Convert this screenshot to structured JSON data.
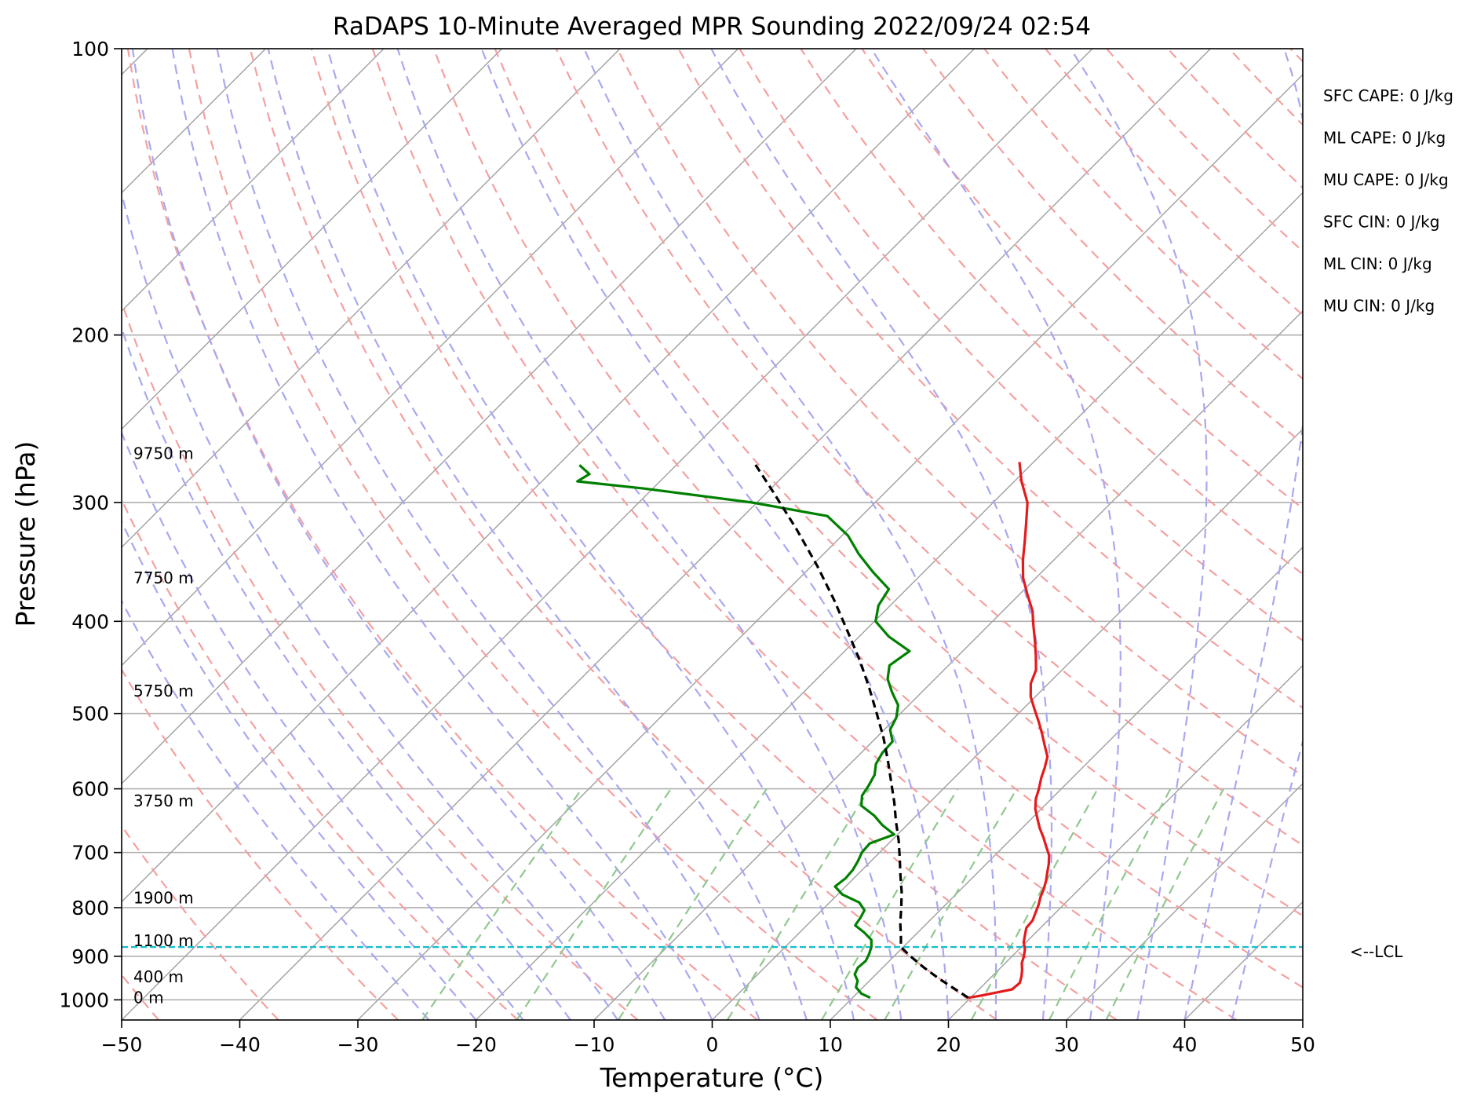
{
  "chart_data": {
    "type": "line",
    "title": "RaDAPS 10-Minute Averaged MPR Sounding 2022/09/24 02:54",
    "xlabel": "Temperature (°C)",
    "ylabel": "Pressure (hPa)",
    "xlim": [
      -50,
      50
    ],
    "ylim": [
      1050,
      100
    ],
    "y_scale": "log",
    "grid": true,
    "x_ticks": [
      -50,
      -40,
      -30,
      -20,
      -10,
      0,
      10,
      20,
      30,
      40,
      50
    ],
    "x_tick_labels": [
      "−50",
      "−40",
      "−30",
      "−20",
      "−10",
      "0",
      "10",
      "20",
      "30",
      "40",
      "50"
    ],
    "y_ticks": [
      100,
      200,
      300,
      400,
      500,
      600,
      700,
      800,
      900,
      1000
    ],
    "y_tick_labels": [
      "100",
      "200",
      "300",
      "400",
      "500",
      "600",
      "700",
      "800",
      "900",
      "1000"
    ],
    "colors": {
      "temperature": "#e41a1c",
      "dewpoint": "#008000",
      "parcel": "#000000",
      "lcl": "#17becf",
      "isotherm": "#a0a0a0",
      "dry_adiabat": "#f4a0a0",
      "moist_adiabat": "#a8a8f0",
      "mixing_ratio": "#90c890"
    },
    "series": [
      {
        "role": "temperature",
        "p": [
          995,
          990,
          975,
          960,
          945,
          930,
          915,
          900,
          885,
          870,
          855,
          840,
          825,
          810,
          795,
          780,
          765,
          750,
          735,
          720,
          705,
          690,
          675,
          660,
          645,
          630,
          615,
          600,
          585,
          570,
          555,
          540,
          525,
          510,
          495,
          480,
          465,
          450,
          435,
          420,
          405,
          390,
          375,
          360,
          345,
          330,
          315,
          300,
          285,
          272
        ],
        "t": [
          19.8,
          20.7,
          22.8,
          22.9,
          22.5,
          22.0,
          21.4,
          21.0,
          20.5,
          19.8,
          19.3,
          18.8,
          18.7,
          18.3,
          17.9,
          17.4,
          17.0,
          16.5,
          15.9,
          15.3,
          14.6,
          13.6,
          12.6,
          11.5,
          10.5,
          9.5,
          8.7,
          8.1,
          7.4,
          6.8,
          6.1,
          4.9,
          3.7,
          2.4,
          1.0,
          -0.4,
          -1.5,
          -2.2,
          -3.4,
          -4.7,
          -6.1,
          -7.5,
          -9.3,
          -11.1,
          -12.6,
          -14.0,
          -15.5,
          -17.1,
          -19.4,
          -21.2
        ]
      },
      {
        "role": "dewpoint",
        "p": [
          995,
          985,
          970,
          955,
          940,
          925,
          910,
          895,
          880,
          865,
          850,
          835,
          820,
          805,
          790,
          775,
          760,
          745,
          730,
          715,
          700,
          685,
          670,
          655,
          640,
          625,
          610,
          595,
          580,
          565,
          550,
          535,
          520,
          505,
          490,
          475,
          460,
          445,
          430,
          415,
          400,
          385,
          370,
          355,
          340,
          325,
          310,
          300,
          290,
          285,
          280,
          274
        ],
        "td": [
          11.5,
          10.4,
          9.4,
          9.0,
          8.2,
          7.9,
          8.0,
          7.7,
          7.3,
          6.7,
          5.5,
          4.1,
          3.9,
          3.6,
          2.5,
          0.4,
          -0.9,
          -0.7,
          -0.8,
          -1.1,
          -1.5,
          -1.6,
          -0.3,
          -2.1,
          -3.6,
          -5.5,
          -6.3,
          -6.6,
          -7.0,
          -7.8,
          -8.2,
          -8.3,
          -9.5,
          -10.0,
          -10.9,
          -12.5,
          -14.0,
          -15.0,
          -14.5,
          -17.5,
          -19.9,
          -21.0,
          -21.5,
          -24.3,
          -27.0,
          -29.5,
          -32.9,
          -40.4,
          -50.8,
          -57.0,
          -56.6,
          -58.2
        ]
      },
      {
        "role": "parcel",
        "p": [
          995,
          975,
          950,
          925,
          900,
          880,
          860,
          830,
          800,
          770,
          740,
          710,
          680,
          650,
          620,
          590,
          560,
          530,
          500,
          470,
          440,
          410,
          380,
          350,
          320,
          290,
          272
        ],
        "t": [
          19.8,
          18.0,
          15.7,
          13.5,
          11.4,
          9.8,
          9.0,
          7.7,
          6.5,
          5.2,
          3.7,
          2.2,
          0.6,
          -1.2,
          -3.0,
          -5.0,
          -7.1,
          -9.4,
          -12.0,
          -14.8,
          -17.9,
          -21.4,
          -25.2,
          -29.5,
          -34.4,
          -40.0,
          -43.7
        ]
      }
    ],
    "lcl_pressure": 880,
    "lcl_label": "<--LCL",
    "height_labels": [
      {
        "text": "9750 m",
        "p": 270
      },
      {
        "text": "7750 m",
        "p": 365
      },
      {
        "text": "5750 m",
        "p": 480
      },
      {
        "text": "3750 m",
        "p": 626
      },
      {
        "text": "1900 m",
        "p": 792
      },
      {
        "text": "1100 m",
        "p": 878
      },
      {
        "text": "400 m",
        "p": 958
      },
      {
        "text": "0 m",
        "p": 1008
      }
    ],
    "indices": [
      "SFC CAPE: 0 J/kg",
      "ML CAPE: 0 J/kg",
      "MU CAPE: 0 J/kg",
      "SFC CIN: 0 J/kg",
      "ML CIN: 0 J/kg",
      "MU CIN: 0 J/kg"
    ]
  }
}
